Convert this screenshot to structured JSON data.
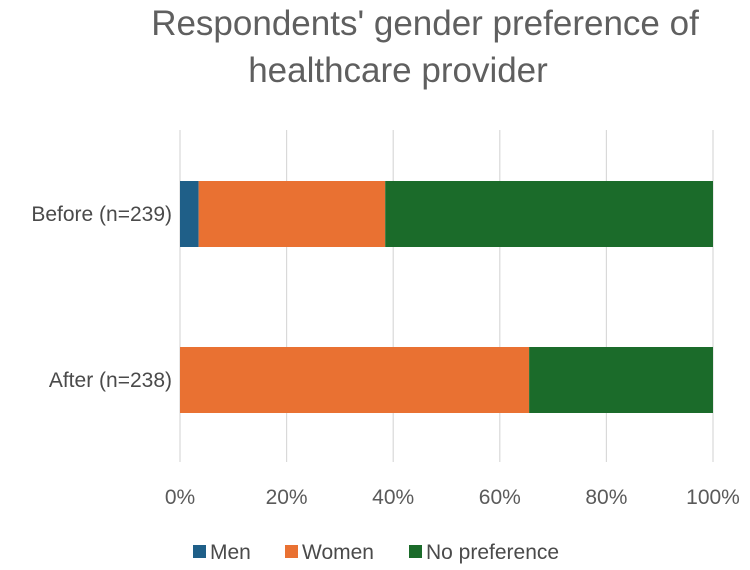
{
  "chart_data": {
    "type": "bar",
    "orientation": "horizontal",
    "stacked": "percent",
    "title": [
      "Respondents' gender preference of",
      "healthcare provider"
    ],
    "categories": [
      "Before (n=239)",
      "After (n=238)"
    ],
    "series": [
      {
        "name": "Men",
        "color": "#1f5f88",
        "values": [
          3.5,
          0
        ]
      },
      {
        "name": "Women",
        "color": "#e97132",
        "values": [
          35,
          65.5
        ]
      },
      {
        "name": "No preference",
        "color": "#1b6b2a",
        "values": [
          61.5,
          34.5
        ]
      }
    ],
    "xlim": [
      0,
      100
    ],
    "xticks": [
      "0%",
      "20%",
      "40%",
      "60%",
      "80%",
      "100%"
    ],
    "grid": true,
    "legend": "bottom"
  }
}
